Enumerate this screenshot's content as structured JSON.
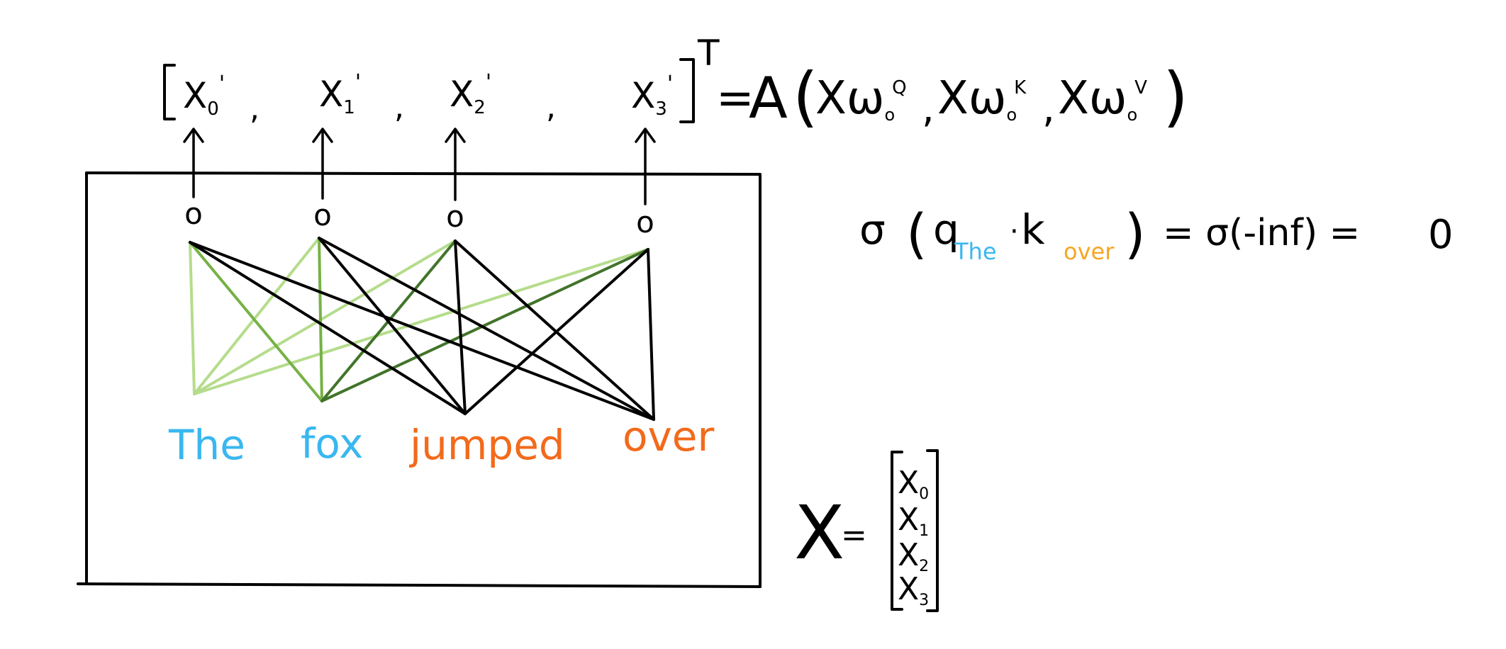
{
  "colors": {
    "ink": "#000000",
    "light_green": "#b5dc8c",
    "mid_green": "#76b146",
    "dark_green": "#41742a",
    "token_blue": "#3ab7f0",
    "token_orange": "#f26a1b",
    "label_orange": "#f5a623"
  },
  "tokens": [
    {
      "text": "The",
      "color": "#3ab7f0"
    },
    {
      "text": "fox",
      "color": "#3ab7f0"
    },
    {
      "text": "jumped",
      "color": "#f26a1b"
    },
    {
      "text": "over",
      "color": "#f26a1b"
    }
  ],
  "outputs": {
    "items": [
      {
        "base": "X",
        "sub": "0",
        "prime": "'"
      },
      {
        "base": "X",
        "sub": "1",
        "prime": "'"
      },
      {
        "base": "X",
        "sub": "2",
        "prime": "'"
      },
      {
        "base": "X",
        "sub": "3",
        "prime": "'"
      }
    ],
    "separator": ",",
    "transpose": "T"
  },
  "attention_eq": {
    "equals": "=",
    "func": "A",
    "args": [
      {
        "base": "Xω",
        "sub": "o",
        "sup": "Q"
      },
      {
        "base": "Xω",
        "sub": "o",
        "sup": "K"
      },
      {
        "base": "Xω",
        "sub": "o",
        "sup": "V"
      }
    ]
  },
  "mask_eq": {
    "sigma": "σ",
    "q": "q",
    "q_sub": "The",
    "dot": "·",
    "k": "k",
    "k_sub": "over",
    "middle": "= σ(-inf) =",
    "result": "0"
  },
  "matrix_eq": {
    "lhs": "X",
    "equals": "=",
    "rows": [
      {
        "base": "X",
        "sub": "0"
      },
      {
        "base": "X",
        "sub": "1"
      },
      {
        "base": "X",
        "sub": "2"
      },
      {
        "base": "X",
        "sub": "3"
      }
    ]
  },
  "node_symbol": "o"
}
